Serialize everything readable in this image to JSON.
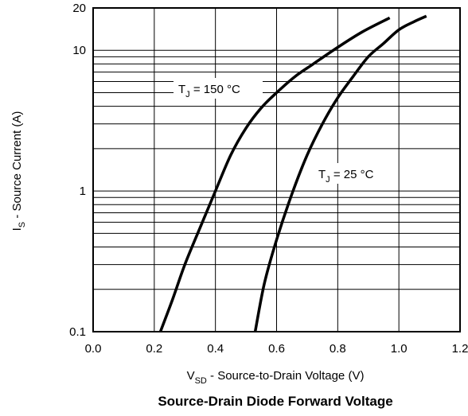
{
  "chart_data": {
    "type": "line",
    "title": "Source-Drain Diode Forward Voltage",
    "xlabel": {
      "main": "V",
      "sub": "SD",
      "rest": " - Source-to-Drain Voltage (V)"
    },
    "ylabel": {
      "main": "I",
      "sub": "S",
      "rest": " - Source Current (A)"
    },
    "xlim": [
      0.0,
      1.2
    ],
    "ylim": [
      0.1,
      20
    ],
    "yscale": "log",
    "grid": true,
    "x_ticks": [
      {
        "v": 0.0,
        "label": "0.0"
      },
      {
        "v": 0.2,
        "label": "0.2"
      },
      {
        "v": 0.4,
        "label": "0.4"
      },
      {
        "v": 0.6,
        "label": "0.6"
      },
      {
        "v": 0.8,
        "label": "0.8"
      },
      {
        "v": 1.0,
        "label": "1.0"
      },
      {
        "v": 1.2,
        "label": "1.2"
      }
    ],
    "y_ticks": [
      {
        "v": 0.1,
        "label": "0.1"
      },
      {
        "v": 1,
        "label": "1"
      },
      {
        "v": 10,
        "label": "10"
      },
      {
        "v": 20,
        "label": "20"
      }
    ],
    "series": [
      {
        "name": {
          "main": "T",
          "sub": "J",
          "rest": " = 150 °C"
        },
        "color": "#000000",
        "points": [
          [
            0.22,
            0.1
          ],
          [
            0.26,
            0.17
          ],
          [
            0.3,
            0.3
          ],
          [
            0.35,
            0.55
          ],
          [
            0.4,
            1.0
          ],
          [
            0.45,
            1.8
          ],
          [
            0.5,
            2.8
          ],
          [
            0.55,
            3.9
          ],
          [
            0.6,
            5.0
          ],
          [
            0.66,
            6.5
          ],
          [
            0.72,
            8.0
          ],
          [
            0.8,
            10.5
          ],
          [
            0.88,
            13.5
          ],
          [
            0.97,
            17.0
          ]
        ]
      },
      {
        "name": {
          "main": "T",
          "sub": "J",
          "rest": " = 25 °C"
        },
        "color": "#000000",
        "points": [
          [
            0.53,
            0.1
          ],
          [
            0.56,
            0.22
          ],
          [
            0.6,
            0.45
          ],
          [
            0.65,
            0.95
          ],
          [
            0.7,
            1.8
          ],
          [
            0.75,
            3.0
          ],
          [
            0.8,
            4.6
          ],
          [
            0.85,
            6.5
          ],
          [
            0.9,
            9.0
          ],
          [
            0.95,
            11.2
          ],
          [
            1.0,
            14.0
          ],
          [
            1.05,
            16.0
          ],
          [
            1.09,
            17.5
          ]
        ]
      }
    ]
  }
}
